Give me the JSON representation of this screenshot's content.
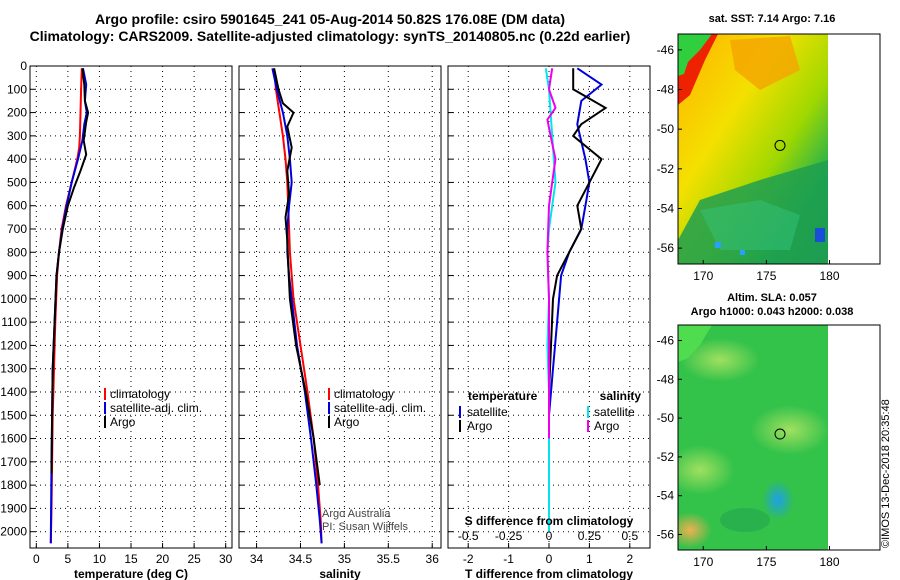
{
  "title_line1": "Argo profile: csiro 5901645_241 05-Aug-2014 50.82S 176.08E (DM data)",
  "title_line2": "Climatology: CARS2009. Satellite-adjusted climatology: synTS_20140805.nc (0.22d earlier)",
  "map_top_title": "sat. SST: 7.14 Argo: 7.16",
  "map_bottom_title1": "Altim. SLA: 0.057",
  "map_bottom_title2": "Argo h1000: 0.043 h2000: 0.038",
  "imos_stamp": "©IMOS 13-Dec-2018 20:35:48",
  "credit_line1": "Argo Australia",
  "credit_line2": "PI: Susan Wijffels",
  "colors": {
    "climatology": "#ff0000",
    "satellite": "#0000dd",
    "argo": "#000000",
    "sal_satellite": "#00e5ee",
    "sal_argo": "#ee00ee"
  },
  "chart_data": [
    {
      "type": "line",
      "xlabel": "temperature (deg C)",
      "ylabel": "",
      "xlim": [
        -1,
        31
      ],
      "ylim": [
        2070,
        0
      ],
      "xticks": [
        0,
        5,
        10,
        15,
        20,
        25,
        30
      ],
      "yticks": [
        0,
        100,
        200,
        300,
        400,
        500,
        600,
        700,
        800,
        900,
        1000,
        1100,
        1200,
        1300,
        1400,
        1500,
        1600,
        1700,
        1800,
        1900,
        2000
      ],
      "legend": [
        "climatology",
        "satellite-adj. clim.",
        "Argo"
      ],
      "series": [
        {
          "name": "climatology",
          "color": "#ff0000",
          "x": [
            7.2,
            7.1,
            7.0,
            6.9,
            6.8,
            6.5,
            5.6,
            4.7,
            4.0,
            3.6,
            3.3,
            3.0,
            2.8,
            2.6,
            2.5,
            2.4,
            2.3
          ],
          "y": [
            10,
            100,
            200,
            300,
            350,
            400,
            500,
            600,
            700,
            800,
            900,
            1100,
            1300,
            1500,
            1700,
            1900,
            2050
          ]
        },
        {
          "name": "satellite-adj. clim.",
          "color": "#0000dd",
          "x": [
            7.4,
            7.9,
            7.7,
            8.0,
            7.6,
            7.3,
            6.6,
            5.6,
            4.8,
            4.1,
            3.6,
            3.2,
            2.9,
            2.6,
            2.5,
            2.4,
            2.3
          ],
          "y": [
            10,
            80,
            150,
            200,
            250,
            320,
            400,
            500,
            600,
            700,
            800,
            900,
            1100,
            1300,
            1500,
            1700,
            2050
          ]
        },
        {
          "name": "Argo",
          "color": "#000000",
          "x": [
            7.3,
            7.6,
            7.7,
            8.2,
            7.9,
            7.5,
            7.9,
            7.0,
            6.0,
            5.0,
            4.2,
            3.6,
            3.2,
            2.9,
            2.6,
            2.5,
            2.4
          ],
          "y": [
            10,
            80,
            150,
            200,
            240,
            320,
            380,
            450,
            520,
            600,
            700,
            800,
            900,
            1100,
            1300,
            1500,
            1750
          ]
        }
      ]
    },
    {
      "type": "line",
      "xlabel": "salinity",
      "ylabel": "",
      "xlim": [
        33.8,
        36.1
      ],
      "ylim": [
        2070,
        0
      ],
      "xticks": [
        34,
        34.5,
        35,
        35.5,
        36
      ],
      "xticklabels": [
        "34",
        "34.5",
        "35",
        "35.5",
        "36"
      ],
      "legend": [
        "climatology",
        "satellite-adj. clim.",
        "Argo"
      ],
      "series": [
        {
          "name": "climatology",
          "color": "#ff0000",
          "x": [
            34.2,
            34.22,
            34.26,
            34.3,
            34.33,
            34.35,
            34.36,
            34.37,
            34.38,
            34.42,
            34.5,
            34.58,
            34.65,
            34.7,
            34.73,
            34.74
          ],
          "y": [
            10,
            100,
            200,
            300,
            400,
            500,
            600,
            700,
            800,
            1000,
            1200,
            1400,
            1600,
            1800,
            1950,
            2050
          ]
        },
        {
          "name": "satellite-adj. clim.",
          "color": "#0000dd",
          "x": [
            34.18,
            34.23,
            34.3,
            34.35,
            34.38,
            34.4,
            34.37,
            34.35,
            34.35,
            34.37,
            34.4,
            34.46,
            34.55,
            34.62,
            34.68,
            34.72,
            34.74
          ],
          "y": [
            10,
            100,
            200,
            300,
            400,
            500,
            600,
            700,
            800,
            900,
            1000,
            1200,
            1400,
            1600,
            1800,
            1950,
            2050
          ]
        },
        {
          "name": "Argo",
          "color": "#000000",
          "x": [
            34.2,
            34.25,
            34.3,
            34.42,
            34.35,
            34.4,
            34.35,
            34.37,
            34.33,
            34.35,
            34.36,
            34.38,
            34.45,
            34.56,
            34.65,
            34.72
          ],
          "y": [
            10,
            100,
            160,
            200,
            260,
            350,
            450,
            550,
            650,
            750,
            850,
            1000,
            1200,
            1400,
            1600,
            1800
          ]
        }
      ]
    },
    {
      "type": "line",
      "xlabel": "T difference from climatology",
      "xlim": [
        -2.5,
        2.5
      ],
      "ylim": [
        2070,
        0
      ],
      "xticks": [
        -2,
        -1,
        0,
        1,
        2
      ],
      "top_axis_label": "S difference from climatology",
      "top_xticks": [
        -0.5,
        -0.25,
        0,
        0.25,
        0.5
      ],
      "top_xticklabels": [
        "-0.5",
        "-0.25",
        "0",
        "0.25",
        "0.5"
      ],
      "top_xlim": [
        -0.625,
        0.625
      ],
      "legend_left_title": "temperature",
      "legend_right_title": "salinity",
      "legend_left": [
        "satellite",
        "Argo"
      ],
      "legend_right": [
        "satellite",
        "Argo"
      ],
      "series": [
        {
          "name": "satellite",
          "axis": "T",
          "color": "#0000dd",
          "x": [
            0.7,
            1.3,
            0.8,
            0.7,
            0.9,
            1.0,
            0.9,
            0.8,
            0.5,
            0.3,
            0.2,
            0.1,
            0.0,
            0.0,
            0.0
          ],
          "y": [
            10,
            80,
            150,
            250,
            400,
            500,
            600,
            700,
            800,
            900,
            1100,
            1300,
            1500,
            1700,
            2000
          ]
        },
        {
          "name": "Argo",
          "axis": "T",
          "color": "#000000",
          "x": [
            0.6,
            0.6,
            1.4,
            0.8,
            0.6,
            1.3,
            1.0,
            0.7,
            0.8,
            0.5,
            0.2,
            0.1,
            0.05,
            0.0,
            0.0
          ],
          "y": [
            10,
            100,
            180,
            250,
            300,
            400,
            500,
            600,
            700,
            800,
            900,
            1000,
            1200,
            1400,
            1700
          ]
        },
        {
          "name": "satellite",
          "axis": "S",
          "color": "#00e5ee",
          "x": [
            -0.02,
            0.0,
            0.01,
            0.02,
            0.03,
            0.04,
            0.02,
            0.0,
            -0.01,
            0.0,
            -0.01,
            0.0,
            0.0,
            0.0
          ],
          "y": [
            10,
            100,
            200,
            300,
            400,
            500,
            600,
            700,
            800,
            1000,
            1200,
            1400,
            1700,
            2000
          ]
        },
        {
          "name": "Argo",
          "axis": "S",
          "color": "#ee00ee",
          "x": [
            0.02,
            0.0,
            0.04,
            -0.01,
            0.01,
            0.04,
            0.02,
            0.0,
            -0.01,
            0.0,
            0.0,
            0.0,
            0.0
          ],
          "y": [
            10,
            100,
            180,
            230,
            300,
            400,
            500,
            600,
            800,
            1000,
            1200,
            1400,
            1600
          ]
        }
      ]
    },
    {
      "type": "heatmap",
      "title": "sat. SST: 7.14 Argo: 7.16",
      "xlim": [
        168,
        184
      ],
      "ylim": [
        -56.8,
        -45.2
      ],
      "xticks": [
        170,
        175,
        180
      ],
      "yticks": [
        -46,
        -48,
        -50,
        -52,
        -54,
        -56
      ],
      "argo_marker": [
        176.08,
        -50.82
      ]
    },
    {
      "type": "heatmap",
      "title": "Altim. SLA: 0.057",
      "xlim": [
        168,
        184
      ],
      "ylim": [
        -56.8,
        -45.2
      ],
      "xticks": [
        170,
        175,
        180
      ],
      "yticks": [
        -46,
        -48,
        -50,
        -52,
        -54,
        -56
      ],
      "argo_marker": [
        176.08,
        -50.82
      ]
    }
  ]
}
